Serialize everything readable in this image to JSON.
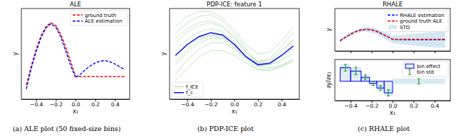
{
  "chart_data": [
    {
      "type": "line",
      "title": "ALE",
      "caption": "(a) ALE plot (50 fixed-size bins)",
      "x_label": "x₁",
      "y_label": "y",
      "x": [
        -0.5,
        -0.45,
        -0.4,
        -0.35,
        -0.3,
        -0.25,
        -0.2,
        -0.15,
        -0.1,
        -0.05,
        0,
        0.05,
        0.1,
        0.15,
        0.2,
        0.25,
        0.3,
        0.35,
        0.4,
        0.45,
        0.5
      ],
      "series": [
        {
          "name": "ground truth",
          "color": "red",
          "line_style": "dashed",
          "values": [
            -0.45,
            -0.12,
            0.18,
            0.42,
            0.58,
            0.65,
            0.6,
            0.45,
            0.22,
            -0.03,
            -0.3,
            -0.3,
            -0.3,
            -0.3,
            -0.3,
            -0.3,
            -0.3,
            -0.3,
            -0.3,
            -0.3,
            -0.3
          ]
        },
        {
          "name": "ALE estimation",
          "color": "blue",
          "line_style": "dashed",
          "values": [
            -0.52,
            -0.16,
            0.14,
            0.39,
            0.56,
            0.63,
            0.57,
            0.4,
            0.15,
            -0.1,
            -0.32,
            -0.26,
            -0.18,
            -0.11,
            -0.06,
            -0.03,
            -0.02,
            -0.04,
            -0.08,
            -0.13,
            -0.18
          ]
        }
      ],
      "xlim": [
        -0.55,
        0.55
      ],
      "ylim": [
        -0.7,
        0.9
      ],
      "xticks": [
        {
          "value": -0.4,
          "label": "−0.4"
        },
        {
          "value": -0.2,
          "label": "−0.2"
        },
        {
          "value": 0.0,
          "label": "0.0"
        },
        {
          "value": 0.2,
          "label": "0.2"
        },
        {
          "value": 0.4,
          "label": "0.4"
        }
      ],
      "tick_labels": "x",
      "legend": "upper right"
    },
    {
      "type": "line",
      "title": "PDP-ICE: feature 1",
      "caption": "(b) PDP-ICE plot",
      "x_label": "x₁",
      "y_label": "y",
      "x": [
        -0.5,
        -0.4,
        -0.3,
        -0.2,
        -0.1,
        0,
        0.1,
        0.2,
        0.3,
        0.4,
        0.5
      ],
      "series": [
        {
          "name": "f_ICE",
          "type": "ice",
          "color": "#2ca02c",
          "line_style": "solid",
          "values": [
            -1.8,
            -0.9,
            -0.2,
            0.2,
            0.2,
            -0.2,
            -0.8,
            -1.3,
            -1.4,
            -1.2,
            -0.9
          ]
        },
        {
          "type": "ice",
          "color": "#2ca02c",
          "line_style": "solid",
          "values": [
            -1.2,
            -0.4,
            0.2,
            0.5,
            0.5,
            0.0,
            -0.7,
            -1.2,
            -1.2,
            -0.9,
            -0.5
          ]
        },
        {
          "type": "ice",
          "color": "#2ca02c",
          "line_style": "solid",
          "values": [
            0.2,
            0.9,
            1.3,
            1.5,
            1.2,
            0.5,
            -0.4,
            -1.0,
            -0.9,
            -0.3,
            0.4
          ]
        },
        {
          "type": "ice",
          "color": "#2ca02c",
          "line_style": "solid",
          "values": [
            0.8,
            1.5,
            1.9,
            2.0,
            1.6,
            0.8,
            -0.2,
            -1.0,
            -0.8,
            0.0,
            0.9
          ]
        },
        {
          "type": "ice",
          "color": "#2ca02c",
          "line_style": "solid",
          "values": [
            -0.3,
            0.4,
            0.9,
            1.1,
            0.9,
            0.2,
            -0.7,
            -1.3,
            -1.2,
            -0.6,
            0.1
          ]
        },
        {
          "type": "ice",
          "color": "#2ca02c",
          "line_style": "solid",
          "values": [
            -1.0,
            -0.2,
            0.4,
            0.7,
            0.6,
            0.1,
            -0.6,
            -1.1,
            -1.1,
            -0.7,
            -0.2
          ]
        },
        {
          "type": "ice",
          "color": "#2ca02c",
          "line_style": "solid",
          "values": [
            1.3,
            1.9,
            2.2,
            2.2,
            1.8,
            1.0,
            0.1,
            -0.5,
            -0.4,
            0.3,
            1.2
          ]
        },
        {
          "type": "ice",
          "color": "#2ca02c",
          "line_style": "solid",
          "values": [
            -2.2,
            -1.4,
            -0.7,
            -0.3,
            -0.3,
            -0.6,
            -1.1,
            -1.5,
            -1.5,
            -1.3,
            -1.0
          ]
        },
        {
          "type": "ice",
          "color": "#2ca02c",
          "line_style": "solid",
          "values": [
            0.5,
            1.1,
            1.5,
            1.6,
            1.3,
            0.6,
            -0.4,
            -1.1,
            -1.0,
            -0.4,
            0.4
          ]
        },
        {
          "type": "ice",
          "color": "#2ca02c",
          "line_style": "solid",
          "values": [
            -0.6,
            0.0,
            0.5,
            0.7,
            0.5,
            -0.1,
            -0.9,
            -1.5,
            -1.6,
            -1.3,
            -0.8
          ]
        },
        {
          "name": "f_c",
          "type": "line",
          "color": "blue",
          "line_style": "solid",
          "values": [
            -0.6,
            0.1,
            0.6,
            0.85,
            0.7,
            0.1,
            -0.7,
            -1.2,
            -1.1,
            -0.6,
            0.0
          ]
        }
      ],
      "xlim": [
        -0.55,
        0.55
      ],
      "ylim": [
        -3.4,
        2.4
      ],
      "xticks": [
        {
          "value": -0.4,
          "label": "−0.4"
        },
        {
          "value": -0.2,
          "label": "−0.2"
        },
        {
          "value": 0.0,
          "label": "0.0"
        },
        {
          "value": 0.2,
          "label": "0.2"
        },
        {
          "value": 0.4,
          "label": "0.4"
        }
      ],
      "tick_labels": "x",
      "legend": "lower left"
    },
    {
      "type": "line",
      "title": "RHALE",
      "caption": "(c) RHALE plot",
      "y_label": "y",
      "x": [
        -0.5,
        -0.45,
        -0.4,
        -0.35,
        -0.3,
        -0.25,
        -0.2,
        -0.15,
        -0.1,
        -0.05,
        0,
        0.05,
        0.1,
        0.15,
        0.2,
        0.25,
        0.3,
        0.35,
        0.4,
        0.45,
        0.5
      ],
      "series": [
        {
          "name": "RHALE estimation",
          "color": "blue",
          "line_style": "dashed",
          "values": [
            -0.42,
            -0.1,
            0.2,
            0.43,
            0.58,
            0.64,
            0.58,
            0.43,
            0.2,
            -0.05,
            -0.3,
            -0.32,
            -0.33,
            -0.33,
            -0.33,
            -0.33,
            -0.33,
            -0.33,
            -0.33,
            -0.33,
            -0.33
          ]
        },
        {
          "name": "ground truth ALE",
          "color": "red",
          "line_style": "dashed",
          "values": [
            -0.45,
            -0.12,
            0.18,
            0.42,
            0.58,
            0.65,
            0.6,
            0.45,
            0.22,
            -0.03,
            -0.3,
            -0.3,
            -0.3,
            -0.3,
            -0.3,
            -0.3,
            -0.3,
            -0.3,
            -0.3,
            -0.3,
            -0.3
          ]
        },
        {
          "name": "STD",
          "type": "band",
          "color": "#9ecae1",
          "values": [
            0.1,
            0.12,
            0.15,
            0.18,
            0.2,
            0.22,
            0.25,
            0.28,
            0.3,
            0.33,
            0.35,
            0.4,
            0.45,
            0.5,
            0.55,
            0.6,
            0.65,
            0.7,
            0.72,
            0.75,
            0.78
          ]
        }
      ],
      "xlim": [
        -0.55,
        0.55
      ],
      "ylim": [
        -1.4,
        2.6
      ],
      "xticks": [
        -0.4,
        -0.2,
        0.0,
        0.2,
        0.4
      ],
      "tick_labels": false,
      "legend": "upper right"
    },
    {
      "type": "bar",
      "x_label": "x₁",
      "y_label": "∂y/∂x₁",
      "bins": [
        -0.5,
        -0.4,
        -0.3,
        -0.22,
        -0.15,
        -0.08,
        0.0,
        0.5
      ],
      "series": [
        {
          "name": "bin effect",
          "color": "blue",
          "values": [
            5.6,
            4.2,
            1.6,
            -0.9,
            -2.8,
            -4.8,
            0.0
          ]
        },
        {
          "name": "bin std",
          "type": "errorbar",
          "color": "#2ca02c",
          "values": [
            1.4,
            1.6,
            1.0,
            0.9,
            1.0,
            1.3,
            1.1
          ]
        }
      ],
      "xlim": [
        -0.55,
        0.55
      ],
      "ylim": [
        -8,
        9
      ],
      "xticks": [
        {
          "value": -0.4,
          "label": "−0.4"
        },
        {
          "value": -0.2,
          "label": "−0.2"
        },
        {
          "value": 0.0,
          "label": "0.0"
        },
        {
          "value": 0.2,
          "label": "0.2"
        },
        {
          "value": 0.4,
          "label": "0.4"
        }
      ],
      "tick_labels": "x",
      "legend": "upper right"
    }
  ]
}
